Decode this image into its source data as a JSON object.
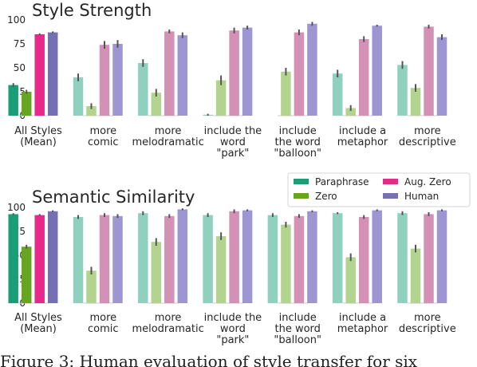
{
  "chart_data": [
    {
      "type": "bar",
      "title": "Style Strength",
      "ylim": [
        0,
        100
      ],
      "yticks": [
        0,
        25,
        50,
        75,
        100
      ],
      "grid": false,
      "categories": [
        [
          "All Styles",
          "(Mean)"
        ],
        [
          "more",
          "comic"
        ],
        [
          "more",
          "melodramatic"
        ],
        [
          "include the",
          "word",
          "\"park\""
        ],
        [
          "include",
          "the word",
          "\"balloon\""
        ],
        [
          "include a",
          "metaphor"
        ],
        [
          "more",
          "descriptive"
        ]
      ],
      "series": [
        {
          "name": "Paraphrase",
          "values": [
            32,
            40,
            55,
            1,
            0,
            44,
            53
          ],
          "errors": [
            2,
            4,
            4,
            1,
            0,
            4,
            4
          ]
        },
        {
          "name": "Zero",
          "values": [
            25,
            10,
            24,
            37,
            46,
            8,
            29
          ],
          "errors": [
            2,
            3,
            4,
            5,
            4,
            3,
            4
          ]
        },
        {
          "name": "Aug. Zero",
          "values": [
            85,
            74,
            88,
            89,
            87,
            80,
            93
          ],
          "errors": [
            1,
            4,
            2,
            3,
            3,
            3,
            2
          ]
        },
        {
          "name": "Human",
          "values": [
            87,
            75,
            84,
            92,
            96,
            94,
            82
          ],
          "errors": [
            1,
            4,
            3,
            2,
            2,
            1,
            3
          ]
        }
      ]
    },
    {
      "type": "bar",
      "title": "Semantic Similarity",
      "ylim": [
        0,
        100
      ],
      "yticks": [
        0,
        25,
        50,
        75,
        100
      ],
      "grid": false,
      "legend_placement": "top-right",
      "categories": [
        [
          "All Styles",
          "(Mean)"
        ],
        [
          "more",
          "comic"
        ],
        [
          "more",
          "melodramatic"
        ],
        [
          "include the",
          "word",
          "\"park\""
        ],
        [
          "include",
          "the word",
          "\"balloon\""
        ],
        [
          "include a",
          "metaphor"
        ],
        [
          "more",
          "descriptive"
        ]
      ],
      "series": [
        {
          "name": "Paraphrase",
          "values": [
            93,
            90,
            94,
            92,
            92,
            94,
            94
          ],
          "errors": [
            1,
            2,
            2,
            2,
            2,
            1,
            2
          ]
        },
        {
          "name": "Zero",
          "values": [
            59,
            34,
            64,
            70,
            82,
            48,
            57
          ],
          "errors": [
            2,
            4,
            4,
            4,
            3,
            4,
            4
          ]
        },
        {
          "name": "Aug. Zero",
          "values": [
            92,
            92,
            91,
            96,
            91,
            90,
            93
          ],
          "errors": [
            1,
            2,
            2,
            2,
            2,
            2,
            2
          ]
        },
        {
          "name": "Human",
          "values": [
            96,
            91,
            98,
            97,
            96,
            97,
            97
          ],
          "errors": [
            1,
            2,
            1,
            1,
            1,
            1,
            1
          ]
        }
      ]
    }
  ],
  "colors": {
    "first_group": [
      "#1a9e78",
      "#66a61e",
      "#e7298a",
      "#7570b3"
    ],
    "other_groups": [
      "#8fd0be",
      "#b2d48e",
      "#d291b5",
      "#9d96d3"
    ],
    "error_bar": "#555555",
    "text": "#262626"
  },
  "legend": {
    "items": [
      {
        "label": "Paraphrase",
        "color": "#1a9e78"
      },
      {
        "label": "Zero",
        "color": "#66a61e"
      },
      {
        "label": "Aug. Zero",
        "color": "#e7298a"
      },
      {
        "label": "Human",
        "color": "#7570b3"
      }
    ]
  },
  "caption": "Figure 3:  Human evaluation of style transfer for six"
}
